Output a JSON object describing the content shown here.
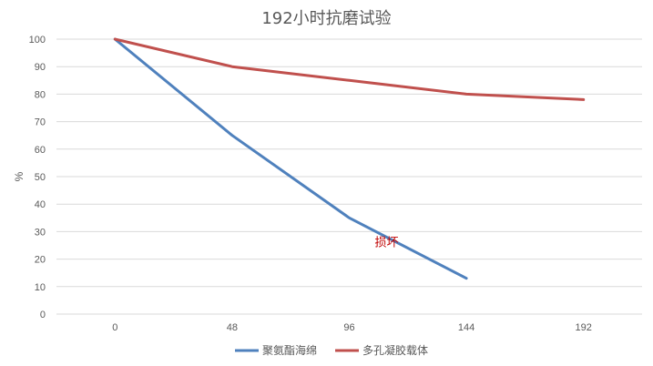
{
  "chart_data": {
    "type": "line",
    "title": "192小时抗磨试验",
    "xlabel": "",
    "ylabel": "%",
    "x": [
      0,
      48,
      96,
      144,
      192
    ],
    "ylim": [
      0,
      100
    ],
    "yticks": [
      0,
      10,
      20,
      30,
      40,
      50,
      60,
      70,
      80,
      90,
      100
    ],
    "grid": true,
    "legend_position": "bottom",
    "series": [
      {
        "name": "聚氨酯海绵",
        "color": "#4f81bd",
        "values": [
          100,
          65,
          35,
          13,
          null
        ]
      },
      {
        "name": "多孔凝胶载体",
        "color": "#c0504d",
        "values": [
          100,
          90,
          85,
          80,
          78
        ]
      }
    ],
    "annotations": [
      {
        "text": "损坏",
        "x": 96,
        "y": 26
      }
    ]
  }
}
